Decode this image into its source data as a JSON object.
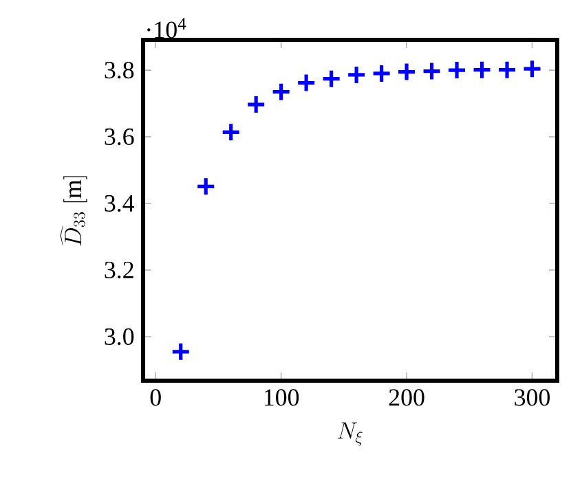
{
  "chart_data": {
    "type": "scatter",
    "xlabel": "N_\\xi",
    "ylabel": "\\widehat{D}_{33}\\ [\\mathrm{m}]",
    "annotations": [
      "·10$^{4}$"
    ],
    "x": [
      20,
      40,
      60,
      80,
      100,
      120,
      140,
      160,
      180,
      200,
      220,
      240,
      260,
      280,
      300
    ],
    "series": [
      {
        "color": "#0000ff",
        "values": [
          2.955,
          3.451,
          3.614,
          3.697,
          3.735,
          3.762,
          3.774,
          3.786,
          3.79,
          3.795,
          3.797,
          3.8,
          3.801,
          3.801,
          3.804
        ]
      }
    ],
    "marker": "cross",
    "xlim": [
      -10,
      320
    ],
    "ylim": [
      2.868,
      3.891
    ],
    "xticks": [
      0,
      100,
      200,
      300
    ],
    "yticks": [
      {
        "value": 3,
        "label": "3.0"
      },
      3.2,
      3.4,
      3.6,
      3.8
    ]
  }
}
